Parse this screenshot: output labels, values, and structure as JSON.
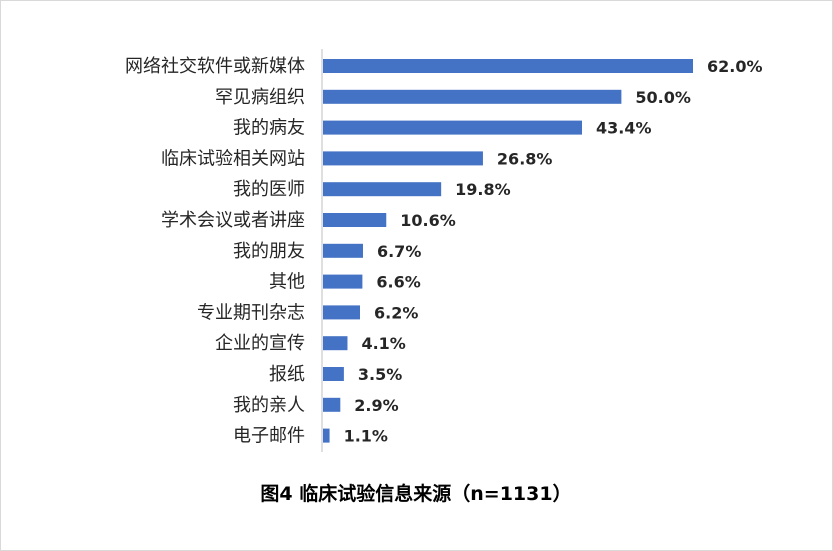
{
  "chart_data": {
    "type": "bar",
    "orientation": "horizontal",
    "title": "图4 临床试验信息来源（n=1131）",
    "xlabel": "",
    "ylabel": "",
    "xlim": [
      0,
      62
    ],
    "grid": false,
    "legend": "none",
    "bar_color": "#4472c4",
    "categories": [
      "网络社交软件或新媒体",
      "罕见病组织",
      "我的病友",
      "临床试验相关网站",
      "我的医师",
      "学术会议或者讲座",
      "我的朋友",
      "其他",
      "专业期刊杂志",
      "企业的宣传",
      "报纸",
      "我的亲人",
      "电子邮件"
    ],
    "values": [
      62.0,
      50.0,
      43.4,
      26.8,
      19.8,
      10.6,
      6.7,
      6.6,
      6.2,
      4.1,
      3.5,
      2.9,
      1.1
    ],
    "value_labels": [
      "62.0%",
      "50.0%",
      "43.4%",
      "26.8%",
      "19.8%",
      "10.6%",
      "6.7%",
      "6.6%",
      "6.2%",
      "4.1%",
      "3.5%",
      "2.9%",
      "1.1%"
    ]
  }
}
